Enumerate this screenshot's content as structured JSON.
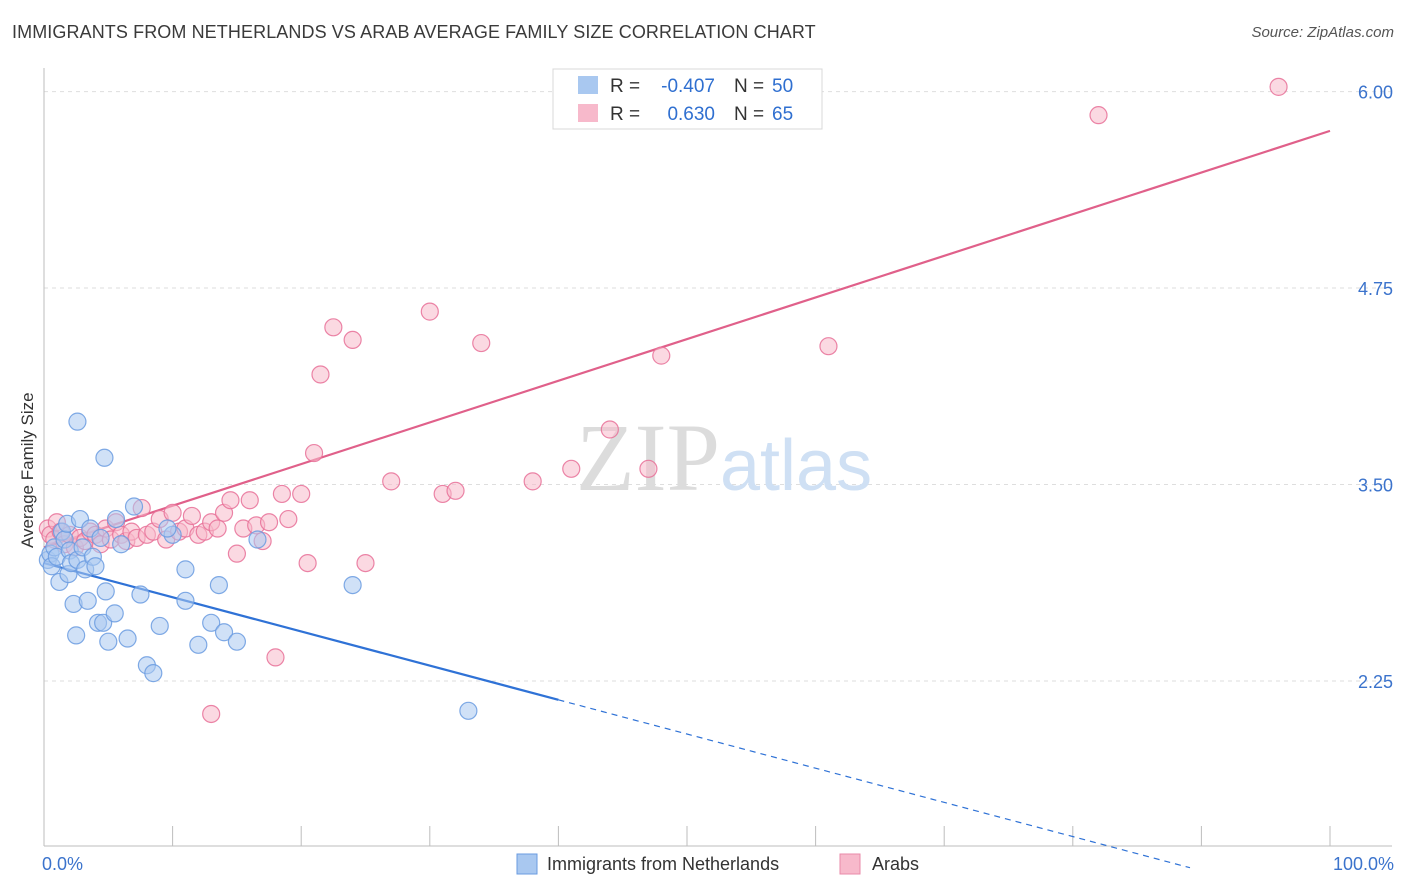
{
  "title": "IMMIGRANTS FROM NETHERLANDS VS ARAB AVERAGE FAMILY SIZE CORRELATION CHART",
  "source": "Source: ZipAtlas.com",
  "watermark": {
    "zip": "ZIP",
    "atlas": "atlas"
  },
  "legend_box": {
    "rows": [
      {
        "r_label": "R =",
        "r_value": "-0.407",
        "n_label": "N =",
        "n_value": "50",
        "color": "#a9c8f0",
        "stroke": "#6a9be0"
      },
      {
        "r_label": "R =",
        "r_value": "0.630",
        "n_label": "N =",
        "n_value": "65",
        "color": "#f7b9cb",
        "stroke": "#e88aa8"
      }
    ]
  },
  "chart_data": {
    "type": "scatter",
    "title": "IMMIGRANTS FROM NETHERLANDS VS ARAB AVERAGE FAMILY SIZE CORRELATION CHART",
    "xlabel": "",
    "ylabel": "Average Family Size",
    "x_tick_labels": [
      "0.0%",
      "100.0%"
    ],
    "y_ticks": [
      2.25,
      3.5,
      4.75,
      6.0
    ],
    "y_tick_labels": [
      "2.25",
      "3.50",
      "4.75",
      "6.00"
    ],
    "xlim": [
      0,
      100
    ],
    "ylim": [
      1.2,
      6.15
    ],
    "grid": true,
    "legend_position": "bottom",
    "series": [
      {
        "name": "Immigrants from Netherlands",
        "color": "#6a9be0",
        "fill": "#a9c8f0",
        "trend": {
          "x0": 0,
          "y0": 3.0,
          "x1": 40,
          "y1": 2.13,
          "dashed_to_x": 100
        },
        "points": [
          [
            0.3,
            3.02
          ],
          [
            0.5,
            3.06
          ],
          [
            0.6,
            2.98
          ],
          [
            0.8,
            3.1
          ],
          [
            1.0,
            3.04
          ],
          [
            1.2,
            2.88
          ],
          [
            1.4,
            3.2
          ],
          [
            1.6,
            3.15
          ],
          [
            1.8,
            3.25
          ],
          [
            1.9,
            2.93
          ],
          [
            2.0,
            3.08
          ],
          [
            2.1,
            3.0
          ],
          [
            2.3,
            2.74
          ],
          [
            2.5,
            2.54
          ],
          [
            2.6,
            3.02
          ],
          [
            2.8,
            3.28
          ],
          [
            3.0,
            3.1
          ],
          [
            3.2,
            2.96
          ],
          [
            3.4,
            2.76
          ],
          [
            3.6,
            3.22
          ],
          [
            3.8,
            3.04
          ],
          [
            4.0,
            2.98
          ],
          [
            4.2,
            2.62
          ],
          [
            4.4,
            3.16
          ],
          [
            4.6,
            2.62
          ],
          [
            4.8,
            2.82
          ],
          [
            5.0,
            2.5
          ],
          [
            5.5,
            2.68
          ],
          [
            6.0,
            3.12
          ],
          [
            6.5,
            2.52
          ],
          [
            7.0,
            3.36
          ],
          [
            7.5,
            2.8
          ],
          [
            8.0,
            2.35
          ],
          [
            8.5,
            2.3
          ],
          [
            9.0,
            2.6
          ],
          [
            10.0,
            3.18
          ],
          [
            11.0,
            2.76
          ],
          [
            12.0,
            2.48
          ],
          [
            13.0,
            2.62
          ],
          [
            14.0,
            2.56
          ],
          [
            2.6,
            3.9
          ],
          [
            4.7,
            3.67
          ],
          [
            5.6,
            3.28
          ],
          [
            9.6,
            3.22
          ],
          [
            11.0,
            2.96
          ],
          [
            13.6,
            2.86
          ],
          [
            15.0,
            2.5
          ],
          [
            16.6,
            3.15
          ],
          [
            24.0,
            2.86
          ],
          [
            33.0,
            2.06
          ]
        ]
      },
      {
        "name": "Arabs",
        "color": "#e87098",
        "fill": "#f7b9cb",
        "trend": {
          "x0": 0,
          "y0": 3.1,
          "x1": 100,
          "y1": 5.75
        },
        "points": [
          [
            0.3,
            3.22
          ],
          [
            0.5,
            3.18
          ],
          [
            0.8,
            3.15
          ],
          [
            1.0,
            3.26
          ],
          [
            1.3,
            3.2
          ],
          [
            1.6,
            3.12
          ],
          [
            2.0,
            3.18
          ],
          [
            2.4,
            3.1
          ],
          [
            2.8,
            3.16
          ],
          [
            3.2,
            3.14
          ],
          [
            3.6,
            3.2
          ],
          [
            4.0,
            3.18
          ],
          [
            4.4,
            3.12
          ],
          [
            4.8,
            3.22
          ],
          [
            5.2,
            3.15
          ],
          [
            5.6,
            3.26
          ],
          [
            6.0,
            3.18
          ],
          [
            6.4,
            3.14
          ],
          [
            6.8,
            3.2
          ],
          [
            7.2,
            3.16
          ],
          [
            7.6,
            3.35
          ],
          [
            8.0,
            3.18
          ],
          [
            8.5,
            3.2
          ],
          [
            9.0,
            3.28
          ],
          [
            9.5,
            3.15
          ],
          [
            10.0,
            3.32
          ],
          [
            10.5,
            3.2
          ],
          [
            11.0,
            3.22
          ],
          [
            11.5,
            3.3
          ],
          [
            12.0,
            3.18
          ],
          [
            12.5,
            3.2
          ],
          [
            13.0,
            3.26
          ],
          [
            13.5,
            3.22
          ],
          [
            14.0,
            3.32
          ],
          [
            14.5,
            3.4
          ],
          [
            15.0,
            3.06
          ],
          [
            15.5,
            3.22
          ],
          [
            16.0,
            3.4
          ],
          [
            16.5,
            3.24
          ],
          [
            17.0,
            3.14
          ],
          [
            17.5,
            3.26
          ],
          [
            18.0,
            2.4
          ],
          [
            18.5,
            3.44
          ],
          [
            19.0,
            3.28
          ],
          [
            20.0,
            3.44
          ],
          [
            20.5,
            3.0
          ],
          [
            21.0,
            3.7
          ],
          [
            21.5,
            4.2
          ],
          [
            22.5,
            4.5
          ],
          [
            24.0,
            4.42
          ],
          [
            25.0,
            3.0
          ],
          [
            27.0,
            3.52
          ],
          [
            30.0,
            4.6
          ],
          [
            31.0,
            3.44
          ],
          [
            32.0,
            3.46
          ],
          [
            34.0,
            4.4
          ],
          [
            38.0,
            3.52
          ],
          [
            41.0,
            3.6
          ],
          [
            44.0,
            3.85
          ],
          [
            47.0,
            3.6
          ],
          [
            48.0,
            4.32
          ],
          [
            61.0,
            4.38
          ],
          [
            82.0,
            5.85
          ],
          [
            96.0,
            6.03
          ],
          [
            13.0,
            2.04
          ]
        ]
      }
    ]
  }
}
